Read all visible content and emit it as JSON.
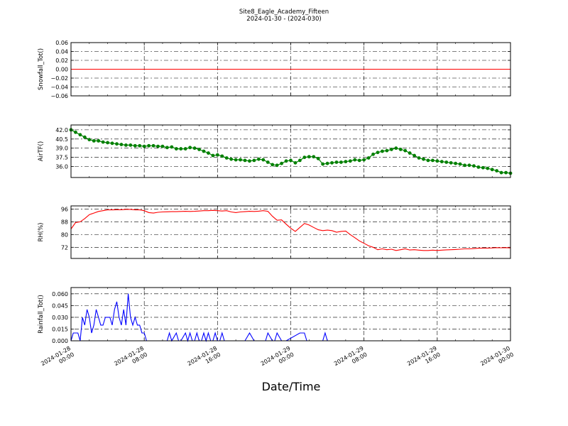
{
  "figure": {
    "title": "Site8_Eagle_Academy_Fifteen",
    "subtitle": "2024-01-30 - (2024-030)",
    "xlabel": "Date/Time"
  },
  "chart_data": [
    {
      "type": "line",
      "ylabel": "Snowfall_Tot()",
      "color": "#ff0000",
      "markers": false,
      "ylim": [
        -0.06,
        0.06
      ],
      "yticks": [
        "0.06",
        "0.04",
        "0.02",
        "0.00",
        "−0.02",
        "−0.04",
        "−0.06"
      ],
      "xlim": [
        0,
        48
      ],
      "grid": true,
      "x": [
        0,
        48
      ],
      "values": [
        0.0,
        0.0
      ]
    },
    {
      "type": "line",
      "ylabel": "AirTF()",
      "color": "#008000",
      "markers": true,
      "ylim": [
        34.2,
        42.8
      ],
      "yticks": [
        "42.0",
        "40.5",
        "39.0",
        "37.5",
        "36.0"
      ],
      "xlim": [
        0,
        48
      ],
      "grid": true,
      "x": [
        0,
        0.5,
        1,
        1.5,
        2,
        2.5,
        3,
        3.5,
        4,
        4.5,
        5,
        5.5,
        6,
        6.5,
        7,
        7.5,
        8,
        8.5,
        9,
        9.5,
        10,
        10.5,
        11,
        11.5,
        12,
        12.5,
        13,
        13.5,
        14,
        14.5,
        15,
        15.5,
        16,
        16.5,
        17,
        17.5,
        18,
        18.5,
        19,
        19.5,
        20,
        20.5,
        21,
        21.5,
        22,
        22.5,
        23,
        23.5,
        24,
        24.5,
        25,
        25.5,
        26,
        26.5,
        27,
        27.5,
        28,
        28.5,
        29,
        29.5,
        30,
        30.5,
        31,
        31.5,
        32,
        32.5,
        33,
        33.5,
        34,
        34.5,
        35,
        35.5,
        36,
        36.5,
        37,
        37.5,
        38,
        38.5,
        39,
        39.5,
        40,
        40.5,
        41,
        41.5,
        42,
        42.5,
        43,
        43.5,
        44,
        44.5,
        45,
        45.5,
        46,
        46.5,
        47,
        47.5,
        48
      ],
      "values": [
        42.0,
        41.6,
        41.2,
        40.8,
        40.4,
        40.2,
        40.2,
        40.0,
        39.9,
        39.8,
        39.7,
        39.6,
        39.5,
        39.5,
        39.4,
        39.4,
        39.3,
        39.4,
        39.4,
        39.3,
        39.3,
        39.1,
        39.2,
        38.9,
        38.9,
        38.9,
        39.1,
        39.0,
        38.8,
        38.5,
        38.2,
        37.8,
        37.9,
        37.7,
        37.4,
        37.2,
        37.1,
        37.1,
        37.0,
        36.9,
        37.0,
        37.2,
        37.1,
        36.7,
        36.3,
        36.2,
        36.5,
        36.9,
        37.0,
        36.6,
        37.0,
        37.5,
        37.6,
        37.6,
        37.3,
        36.4,
        36.5,
        36.6,
        36.7,
        36.7,
        36.8,
        36.9,
        37.1,
        37.0,
        37.1,
        37.4,
        38.0,
        38.3,
        38.5,
        38.6,
        38.8,
        39.0,
        38.8,
        38.6,
        38.2,
        37.8,
        37.4,
        37.2,
        37.0,
        37.0,
        36.9,
        36.8,
        36.7,
        36.6,
        36.5,
        36.4,
        36.2,
        36.2,
        36.1,
        35.9,
        35.8,
        35.7,
        35.5,
        35.3,
        35.0,
        35.0,
        34.9
      ]
    },
    {
      "type": "line",
      "ylabel": "RH(%)",
      "color": "#ff0000",
      "markers": false,
      "ylim": [
        65,
        98
      ],
      "yticks": [
        "96",
        "88",
        "80",
        "72"
      ],
      "xlim": [
        0,
        48
      ],
      "grid": true,
      "x": [
        0,
        0.5,
        1,
        1.5,
        2,
        2.5,
        3,
        3.5,
        4,
        4.5,
        5,
        5.5,
        6,
        6.5,
        7,
        7.5,
        8,
        8.5,
        9,
        9.5,
        10,
        10.5,
        11,
        11.5,
        12,
        12.5,
        13,
        13.5,
        14,
        14.5,
        15,
        15.5,
        16,
        16.5,
        17,
        17.5,
        18,
        18.5,
        19,
        19.5,
        20,
        20.5,
        21,
        21.5,
        22,
        22.5,
        23,
        23.5,
        24,
        24.5,
        25,
        25.5,
        26,
        26.5,
        27,
        27.5,
        28,
        28.5,
        29,
        29.5,
        30,
        30.5,
        31,
        31.5,
        32,
        32.5,
        33,
        33.5,
        34,
        34.5,
        35,
        35.5,
        36,
        36.5,
        37,
        37.5,
        38,
        38.5,
        39,
        39.5,
        40,
        40.5,
        41,
        41.5,
        42,
        42.5,
        43,
        43.5,
        44,
        44.5,
        45,
        45.5,
        46,
        46.5,
        47,
        47.5,
        48
      ],
      "values": [
        83.5,
        87.5,
        88.0,
        90.0,
        92.5,
        93.5,
        94.5,
        95.0,
        95.5,
        95.5,
        95.6,
        95.6,
        95.8,
        95.8,
        95.5,
        95.5,
        95.0,
        93.8,
        93.5,
        94.0,
        94.2,
        94.3,
        94.4,
        94.4,
        94.5,
        94.6,
        94.5,
        94.6,
        94.8,
        95.0,
        95.0,
        95.2,
        95.0,
        94.8,
        95.0,
        94.2,
        93.8,
        94.2,
        94.4,
        94.6,
        94.5,
        94.7,
        95.0,
        94.6,
        91.5,
        89.0,
        89.2,
        86.5,
        84.0,
        82.0,
        84.5,
        87.0,
        86.0,
        84.5,
        83.0,
        82.5,
        82.8,
        82.5,
        81.5,
        82.0,
        82.2,
        80.0,
        78.0,
        76.0,
        74.5,
        73.0,
        72.0,
        70.5,
        71.0,
        70.5,
        70.8,
        70.0,
        70.5,
        71.0,
        70.3,
        70.5,
        70.2,
        70.0,
        70.0,
        70.2,
        70.0,
        70.2,
        70.4,
        70.5,
        70.6,
        70.8,
        71.0,
        71.0,
        71.2,
        71.4,
        71.5,
        71.5,
        71.6,
        71.8,
        71.7,
        71.8,
        71.6
      ]
    },
    {
      "type": "line",
      "ylabel": "Rainfall_Tot()",
      "color": "#0000ff",
      "markers": false,
      "ylim": [
        0,
        0.068
      ],
      "yticks": [
        "0.060",
        "0.045",
        "0.030",
        "0.015",
        "0.000"
      ],
      "xlim": [
        0,
        48
      ],
      "xticks": [
        [
          "2024-01-28",
          "00:00"
        ],
        [
          "2024-01-28",
          "08:00"
        ],
        [
          "2024-01-28",
          "16:00"
        ],
        [
          "2024-01-29",
          "00:00"
        ],
        [
          "2024-01-29",
          "08:00"
        ],
        [
          "2024-01-29",
          "16:00"
        ],
        [
          "2024-01-30",
          "00:00"
        ]
      ],
      "xtick_values": [
        0,
        8,
        16,
        24,
        32,
        40,
        48
      ],
      "grid": true,
      "x": [
        0,
        0.25,
        0.5,
        0.75,
        1,
        1.25,
        1.5,
        1.75,
        2,
        2.25,
        2.5,
        2.75,
        3,
        3.25,
        3.5,
        3.75,
        4,
        4.25,
        4.5,
        4.75,
        5,
        5.25,
        5.5,
        5.75,
        6,
        6.25,
        6.5,
        6.75,
        7,
        7.25,
        7.5,
        7.75,
        8,
        8.25,
        8.5,
        8.75,
        9,
        10.5,
        10.75,
        11,
        11.5,
        11.75,
        12,
        12.5,
        12.75,
        13,
        13.25,
        13.5,
        13.75,
        14,
        14.25,
        14.5,
        14.75,
        15,
        15.25,
        15.5,
        15.75,
        16,
        16.25,
        16.5,
        16.75,
        17,
        17.25,
        17.5,
        19,
        19.5,
        20,
        20.25,
        21,
        21.25,
        21.5,
        22,
        22.25,
        22.5,
        23,
        23.25,
        23.5,
        25,
        25.5,
        25.75,
        26,
        27.5,
        27.75,
        28,
        28.25,
        48
      ],
      "values": [
        0,
        0.01,
        0.01,
        0.01,
        0,
        0.03,
        0.02,
        0.04,
        0.03,
        0.01,
        0.02,
        0.04,
        0.03,
        0.02,
        0.02,
        0.03,
        0.03,
        0.03,
        0.02,
        0.04,
        0.05,
        0.03,
        0.02,
        0.04,
        0.02,
        0.06,
        0.03,
        0.02,
        0.03,
        0.02,
        0.02,
        0.01,
        0.01,
        0,
        0,
        0,
        0,
        0,
        0.01,
        0,
        0.01,
        0,
        0,
        0.01,
        0,
        0.01,
        0,
        0,
        0.01,
        0,
        0,
        0.01,
        0,
        0.01,
        0,
        0,
        0.01,
        0,
        0,
        0.01,
        0,
        0,
        0,
        0,
        0,
        0.01,
        0,
        0,
        0,
        0,
        0.01,
        0,
        0,
        0.01,
        0,
        0,
        0,
        0.01,
        0.01,
        0,
        0,
        0,
        0.01,
        0,
        0,
        0
      ]
    }
  ]
}
